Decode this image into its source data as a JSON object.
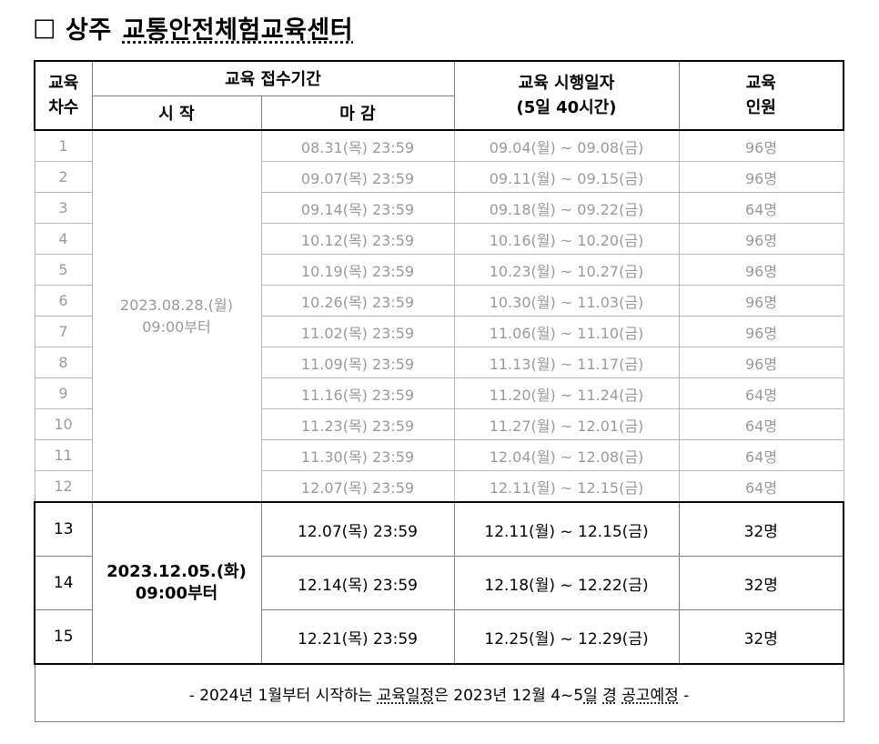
{
  "title": {
    "box": "□",
    "region": "상주",
    "name": "교통안전체험교육센터"
  },
  "header": {
    "round_line1": "교육",
    "round_line2": "차수",
    "period": "교육 접수기간",
    "start": "시 작",
    "end": "마 감",
    "schedule_line1": "교육 시행일자",
    "schedule_line2": "(5일 40시간)",
    "people_line1": "교육",
    "people_line2": "인원"
  },
  "group1_start": {
    "line1": "2023.08.28.(월)",
    "line2": "09:00부터"
  },
  "group2_start": {
    "line1": "2023.12.05.(화)",
    "line2": "09:00부터"
  },
  "rows": [
    {
      "no": "1",
      "deadline": "08.31(목) 23:59",
      "dates": "09.04(월) ~ 09.08(금)",
      "people": "96명"
    },
    {
      "no": "2",
      "deadline": "09.07(목) 23:59",
      "dates": "09.11(월) ~ 09.15(금)",
      "people": "96명"
    },
    {
      "no": "3",
      "deadline": "09.14(목) 23:59",
      "dates": "09.18(월) ~ 09.22(금)",
      "people": "64명"
    },
    {
      "no": "4",
      "deadline": "10.12(목) 23:59",
      "dates": "10.16(월) ~ 10.20(금)",
      "people": "96명"
    },
    {
      "no": "5",
      "deadline": "10.19(목) 23:59",
      "dates": "10.23(월) ~ 10.27(금)",
      "people": "96명"
    },
    {
      "no": "6",
      "deadline": "10.26(목) 23:59",
      "dates": "10.30(월) ~ 11.03(금)",
      "people": "96명"
    },
    {
      "no": "7",
      "deadline": "11.02(목) 23:59",
      "dates": "11.06(월) ~ 11.10(금)",
      "people": "96명"
    },
    {
      "no": "8",
      "deadline": "11.09(목) 23:59",
      "dates": "11.13(월) ~ 11.17(금)",
      "people": "96명"
    },
    {
      "no": "9",
      "deadline": "11.16(목) 23:59",
      "dates": "11.20(월) ~ 11.24(금)",
      "people": "64명"
    },
    {
      "no": "10",
      "deadline": "11.23(목) 23:59",
      "dates": "11.27(월) ~ 12.01(금)",
      "people": "64명"
    },
    {
      "no": "11",
      "deadline": "11.30(목) 23:59",
      "dates": "12.04(월) ~ 12.08(금)",
      "people": "64명"
    },
    {
      "no": "12",
      "deadline": "12.07(목) 23:59",
      "dates": "12.11(월) ~ 12.15(금)",
      "people": "64명"
    },
    {
      "no": "13",
      "deadline": "12.07(목) 23:59",
      "dates": "12.11(월) ~ 12.15(금)",
      "people": "32명"
    },
    {
      "no": "14",
      "deadline": "12.14(목) 23:59",
      "dates": "12.18(월) ~ 12.22(금)",
      "people": "32명"
    },
    {
      "no": "15",
      "deadline": "12.21(목) 23:59",
      "dates": "12.25(월) ~ 12.29(금)",
      "people": "32명"
    }
  ],
  "footer": {
    "pre": "- 2024년 1월부터 시작하는 ",
    "edu_schedule": "교육일정",
    "mid": "은 2023년 12월 4~5",
    "day": "일",
    "space": " ",
    "around": "경",
    "notice": "공고예정",
    "post": " -"
  }
}
